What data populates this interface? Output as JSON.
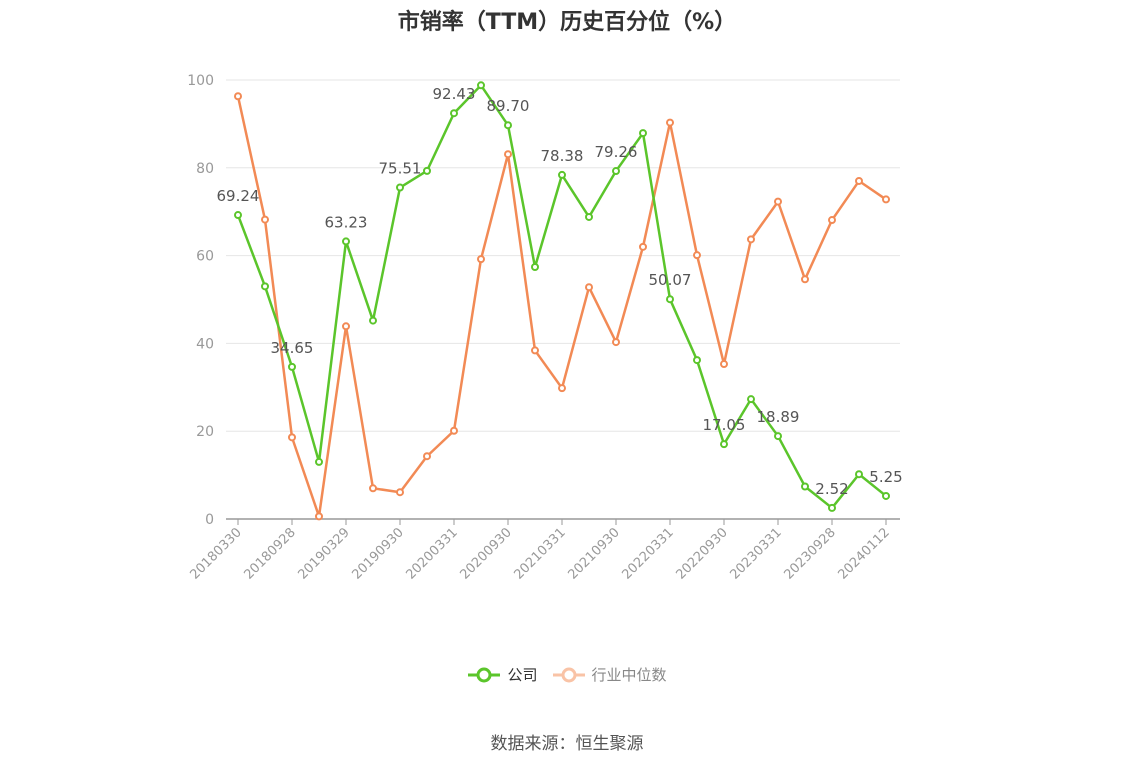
{
  "title": "市销率（TTM）历史百分位（%）",
  "source": "数据来源：恒生聚源",
  "colors": {
    "company": "#5bc52b",
    "industry": "#f28a55",
    "grid": "#e6e6e6",
    "axis": "#999999",
    "axis_text": "#999999",
    "label": "#555555"
  },
  "chart_data": {
    "type": "line",
    "title": "市销率（TTM）历史百分位（%）",
    "ylim": [
      0,
      100
    ],
    "yticks": [
      0,
      20,
      40,
      60,
      80,
      100
    ],
    "grid": true,
    "legend_position": "bottom",
    "x": [
      "20180330",
      "20180630",
      "20180928",
      "20181228",
      "20190329",
      "20190628",
      "20190930",
      "20191231",
      "20200331",
      "20200630",
      "20200930",
      "20201231",
      "20210331",
      "20210630",
      "20210930",
      "20211231",
      "20220331",
      "20220630",
      "20220930",
      "20221230",
      "20230331",
      "20230630",
      "20230928",
      "20231229",
      "20240112"
    ],
    "xtick_labels": [
      "20180330",
      "20180928",
      "20190329",
      "20190930",
      "20200331",
      "20200930",
      "20210331",
      "20210930",
      "20220331",
      "20220930",
      "20230331",
      "20230928",
      "20240112"
    ],
    "series": [
      {
        "name": "公司",
        "key": "company",
        "values": [
          69.24,
          53.0,
          34.65,
          13.0,
          63.23,
          45.2,
          75.51,
          79.3,
          92.43,
          98.8,
          89.7,
          57.4,
          78.38,
          68.8,
          79.26,
          87.9,
          50.07,
          36.2,
          17.05,
          27.3,
          18.89,
          7.4,
          2.52,
          10.2,
          5.25
        ],
        "labels": [
          "69.24",
          null,
          "34.65",
          null,
          "63.23",
          null,
          "75.51",
          null,
          "92.43",
          null,
          "89.70",
          null,
          "78.38",
          null,
          "79.26",
          null,
          "50.07",
          null,
          "17.05",
          null,
          "18.89",
          null,
          "2.52",
          null,
          "5.25"
        ]
      },
      {
        "name": "行业中位数",
        "key": "industry",
        "values": [
          96.3,
          68.2,
          18.6,
          0.6,
          43.9,
          7.0,
          6.1,
          14.3,
          20.1,
          59.2,
          83.1,
          38.4,
          29.8,
          52.8,
          40.3,
          62.0,
          90.3,
          60.1,
          35.3,
          63.7,
          72.3,
          54.6,
          68.1,
          77.0,
          72.8
        ]
      }
    ]
  }
}
